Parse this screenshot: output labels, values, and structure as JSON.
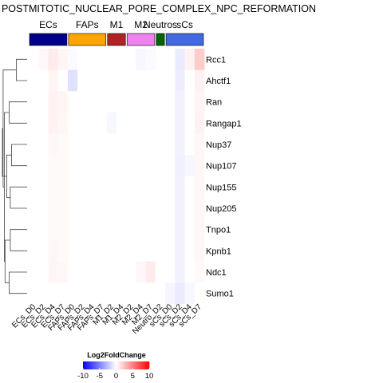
{
  "chart_data": {
    "type": "heatmap",
    "title": "POSTMITOTIC_NUCLEAR_PORE_COMPLEX_NPC_REFORMATION",
    "rows": [
      "Rcc1",
      "Ahctf1",
      "Ran",
      "Rangap1",
      "Nup37",
      "Nup107",
      "Nup155",
      "Nup205",
      "Tnpo1",
      "Kpnb1",
      "Ndc1",
      "Sumo1"
    ],
    "columns": [
      "ECs_D0",
      "ECs_D2",
      "ECs_D4",
      "ECs_D7",
      "FAPs_D0",
      "FAPs_D2",
      "FAPs_D4",
      "FAPs_D7",
      "M1_D2",
      "M1_D4",
      "M2_D2",
      "M2_D4",
      "M2_D7",
      "Neutro_D2",
      "sCs_D0",
      "sCs_D2",
      "sCs_D4",
      "sCs_D7"
    ],
    "column_groups": [
      {
        "name": "ECs",
        "start": 0,
        "end": 3,
        "color": "#00008b"
      },
      {
        "name": "FAPs",
        "start": 4,
        "end": 7,
        "color": "#ffa500"
      },
      {
        "name": "M1",
        "start": 8,
        "end": 9,
        "color": "#b22222"
      },
      {
        "name": "M2",
        "start": 10,
        "end": 12,
        "color": "#ee82ee"
      },
      {
        "name": "Neutros",
        "start": 13,
        "end": 13,
        "color": "#006400"
      },
      {
        "name": "sCs",
        "start": 14,
        "end": 17,
        "color": "#4169e1"
      }
    ],
    "values": [
      [
        0,
        0.3,
        0.8,
        0.4,
        -0.2,
        0,
        0,
        0,
        0,
        0,
        0,
        -0.3,
        -0.2,
        0,
        0,
        -0.8,
        0.5,
        2.0
      ],
      [
        0,
        0,
        0.4,
        0,
        -1.2,
        0,
        0,
        0,
        0,
        0,
        0,
        0,
        0,
        0,
        0,
        -0.7,
        0,
        0.5
      ],
      [
        0,
        0,
        0.5,
        0.4,
        0,
        0,
        0,
        0,
        0,
        0,
        0,
        0,
        0,
        0,
        0,
        -0.5,
        0,
        0.4
      ],
      [
        0,
        0,
        0.5,
        0.3,
        0,
        0,
        0,
        0,
        -0.3,
        0,
        0,
        0,
        0,
        0,
        0,
        -0.5,
        0,
        0.5
      ],
      [
        0,
        0,
        0.3,
        0.2,
        0,
        0,
        0,
        0,
        0,
        0,
        0,
        0,
        0,
        0,
        0,
        -0.5,
        0,
        0.3
      ],
      [
        0,
        0,
        0.2,
        0.2,
        0,
        0,
        0,
        0,
        0,
        0,
        0,
        0,
        0,
        0,
        0,
        -0.6,
        -0.3,
        0.3
      ],
      [
        0,
        0,
        0.2,
        0.2,
        0,
        0,
        0,
        0,
        0,
        0,
        0,
        0,
        0,
        0,
        0,
        -0.5,
        0,
        0.3
      ],
      [
        0,
        0,
        0.2,
        0.2,
        0,
        0,
        0,
        0,
        0,
        0,
        0,
        0,
        0,
        0,
        0,
        -0.5,
        0,
        0.3
      ],
      [
        0,
        0,
        0.2,
        0.2,
        0,
        0,
        0,
        0,
        0,
        0,
        0,
        0,
        0,
        0,
        0,
        -0.5,
        0,
        0.3
      ],
      [
        0,
        0,
        0.3,
        0.2,
        0,
        0,
        0,
        0,
        0,
        0,
        0,
        0,
        0,
        0,
        0,
        -0.5,
        0,
        0.3
      ],
      [
        0,
        0,
        0.4,
        0.3,
        0,
        0,
        0,
        0,
        0,
        0,
        0,
        0.3,
        0.8,
        0,
        0,
        -0.5,
        0,
        0.2
      ],
      [
        0,
        0,
        0,
        0,
        0,
        0,
        0,
        0,
        0,
        0,
        0,
        0,
        0,
        0,
        -0.4,
        -0.8,
        -0.3,
        0
      ]
    ],
    "dendrogram": {
      "leaves": [
        "Rcc1",
        "Ahctf1",
        "Ran",
        "Rangap1",
        "Nup37",
        "Nup107",
        "Nup155",
        "Nup205",
        "Tnpo1",
        "Kpnb1",
        "Ndc1",
        "Sumo1"
      ],
      "merges": [
        [
          0,
          1,
          0.45
        ],
        [
          2,
          3,
          0.75
        ],
        [
          4,
          5,
          0.65
        ],
        [
          6,
          7,
          0.7
        ],
        [
          8,
          9,
          0.7
        ],
        [
          10,
          11,
          0.75
        ],
        [
          14,
          15,
          0.85
        ],
        [
          16,
          17,
          0.92
        ],
        [
          13,
          19,
          0.95
        ],
        [
          12,
          20,
          1.0
        ],
        [
          18,
          21,
          1.03
        ]
      ]
    },
    "colorscale": {
      "title": "Log2FoldChange",
      "min": -10,
      "max": 10,
      "ticks": [
        -10,
        -5,
        0,
        5,
        10
      ],
      "low_color": "#0000ff",
      "mid_color": "#ffffff",
      "high_color": "#ff0000"
    }
  }
}
